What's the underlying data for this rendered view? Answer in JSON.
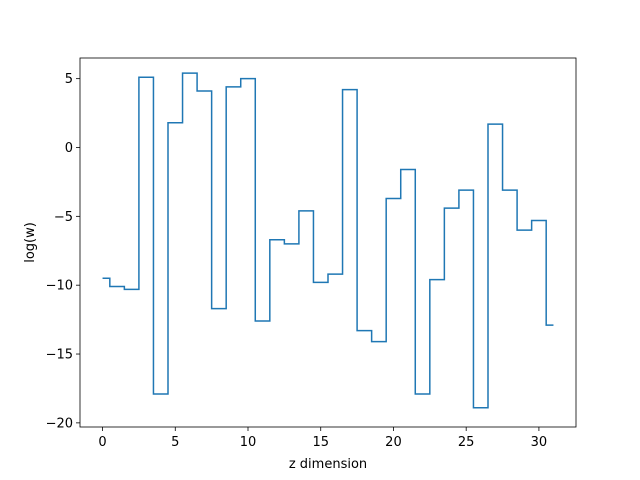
{
  "chart_data": {
    "type": "line",
    "drawstyle": "steps-mid",
    "title": "",
    "xlabel": "z dimension",
    "ylabel": "log(w)",
    "xlim": [
      -1.55,
      32.55
    ],
    "ylim": [
      -20.3,
      6.5
    ],
    "grid": false,
    "line_color": "#1f77b4",
    "xticks": [
      0,
      5,
      10,
      15,
      20,
      25,
      30
    ],
    "xtick_labels": [
      "0",
      "5",
      "10",
      "15",
      "20",
      "25",
      "30"
    ],
    "yticks": [
      5,
      0,
      -5,
      -10,
      -15,
      -20
    ],
    "ytick_labels": [
      "5",
      "0",
      "−5",
      "−10",
      "−15",
      "−20"
    ],
    "x": [
      0,
      1,
      2,
      3,
      4,
      5,
      6,
      7,
      8,
      9,
      10,
      11,
      12,
      13,
      14,
      15,
      16,
      17,
      18,
      19,
      20,
      21,
      22,
      23,
      24,
      25,
      26,
      27,
      28,
      29,
      30,
      31
    ],
    "series": [
      {
        "values": [
          -9.5,
          -10.1,
          -10.3,
          5.1,
          -17.9,
          1.8,
          5.4,
          4.1,
          -11.7,
          4.4,
          5.0,
          -12.6,
          -6.7,
          -7.0,
          -4.6,
          -9.8,
          -9.2,
          4.2,
          -13.3,
          -14.1,
          -3.7,
          -1.6,
          -17.9,
          -9.6,
          -4.4,
          -3.1,
          -18.9,
          1.7,
          -3.1,
          -6.0,
          -5.3,
          -12.9
        ]
      }
    ]
  }
}
